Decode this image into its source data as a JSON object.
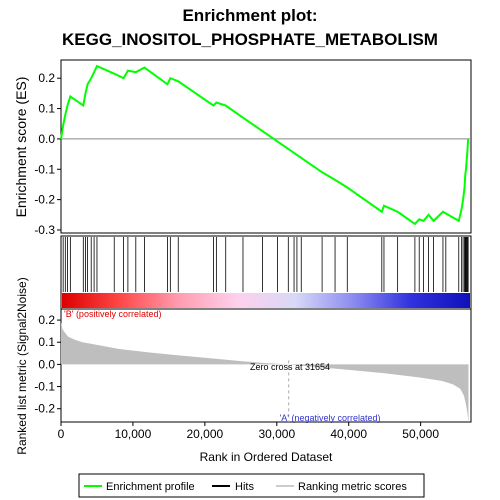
{
  "chart_data": {
    "type": "line",
    "title_line1": "Enrichment plot:",
    "title_line2": "KEGG_INOSITOL_PHOSPHATE_METABOLISM",
    "es_panel": {
      "ylabel": "Enrichment score (ES)",
      "ylim": [
        -0.31,
        0.26
      ],
      "yticks": [
        0.2,
        0.1,
        0.0,
        -0.1,
        -0.2,
        -0.3
      ],
      "ytick_labels": [
        "0.2",
        "0.1",
        "0.0",
        "-0.1",
        "-0.2",
        "-0.3"
      ],
      "line_color": "#00ff00",
      "x": [
        0,
        300,
        600,
        900,
        1300,
        3100,
        3400,
        3700,
        4200,
        4600,
        5000,
        7400,
        8700,
        9300,
        10400,
        11600,
        14800,
        15200,
        16300,
        21200,
        21600,
        22900,
        25300,
        36300,
        38100,
        39800,
        44600,
        44900,
        46800,
        49200,
        49800,
        50400,
        51100,
        51800,
        53100,
        55300,
        55700,
        55900,
        56100,
        56200,
        56300,
        56400,
        56500,
        56600
      ],
      "y": [
        0.0,
        0.045,
        0.08,
        0.11,
        0.14,
        0.11,
        0.15,
        0.18,
        0.2,
        0.22,
        0.24,
        0.215,
        0.2,
        0.225,
        0.22,
        0.235,
        0.18,
        0.2,
        0.19,
        0.11,
        0.12,
        0.11,
        0.07,
        -0.11,
        -0.135,
        -0.16,
        -0.24,
        -0.22,
        -0.24,
        -0.28,
        -0.265,
        -0.27,
        -0.25,
        -0.27,
        -0.24,
        -0.27,
        -0.23,
        -0.2,
        -0.16,
        -0.12,
        -0.1,
        -0.07,
        -0.04,
        0.0
      ]
    },
    "hits": [
      300,
      600,
      900,
      1300,
      3100,
      3400,
      3700,
      4200,
      4600,
      5000,
      7400,
      8700,
      9300,
      10400,
      11600,
      14800,
      15200,
      16300,
      21200,
      21600,
      22900,
      25300,
      28000,
      30100,
      31600,
      32400,
      32800,
      33400,
      36300,
      38100,
      39800,
      44600,
      44900,
      46800,
      49200,
      49800,
      50400,
      51100,
      51800,
      53100,
      53500,
      55300,
      55700,
      55900,
      56100,
      56200,
      56300,
      56400,
      56500,
      56600
    ],
    "colorbar_stops": [
      "#dd0000",
      "#ff4848",
      "#ff9cb0",
      "#ffd0ec",
      "#d8d8f8",
      "#8b8bf0",
      "#3030dd",
      "#1010bb"
    ],
    "metric_panel": {
      "ylabel": "Ranked list metric (Signal2Noise)",
      "ylim": [
        -0.26,
        0.25
      ],
      "yticks": [
        0.2,
        0.1,
        0.0,
        -0.1,
        -0.2
      ],
      "ytick_labels": [
        "0.2",
        "0.1",
        "0.0",
        "-0.1",
        "-0.2"
      ],
      "fill_color": "#bebebe",
      "x": [
        0,
        200,
        500,
        1000,
        2000,
        3000,
        5000,
        8000,
        12000,
        16000,
        20000,
        25000,
        28000,
        31654,
        35000,
        40000,
        45000,
        50000,
        53000,
        54500,
        55500,
        56000,
        56300,
        56500,
        56650
      ],
      "y": [
        0.19,
        0.16,
        0.145,
        0.125,
        0.11,
        0.1,
        0.088,
        0.07,
        0.055,
        0.042,
        0.03,
        0.015,
        0.007,
        0.0,
        -0.01,
        -0.025,
        -0.04,
        -0.06,
        -0.075,
        -0.09,
        -0.11,
        -0.14,
        -0.18,
        -0.22,
        -0.265
      ]
    },
    "xlabel": "Rank in Ordered Dataset",
    "xlim": [
      0,
      57000
    ],
    "xticks": [
      0,
      10000,
      20000,
      30000,
      40000,
      50000
    ],
    "xtick_labels": [
      "0",
      "10,000",
      "20,000",
      "30,000",
      "40,000",
      "50,000"
    ],
    "annotations": {
      "positive": "'B' (positively correlated)",
      "negative": "'A' (negatively correlated)",
      "zero_cross": "Zero cross at 31654",
      "zero_cross_x": 31654
    },
    "legend": {
      "placement": "bottom",
      "items": [
        {
          "label": "Enrichment profile",
          "color": "#00ff00",
          "kind": "line"
        },
        {
          "label": "Hits",
          "color": "#000000",
          "kind": "line"
        },
        {
          "label": "Ranking metric scores",
          "color": "#cccccc",
          "kind": "line"
        }
      ]
    }
  }
}
